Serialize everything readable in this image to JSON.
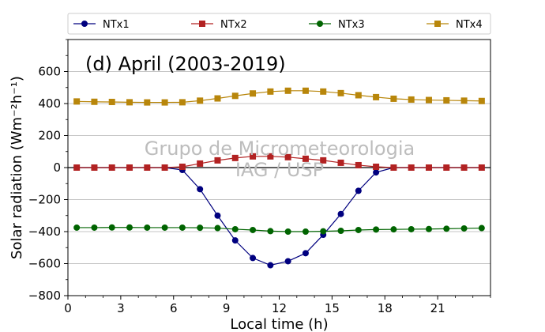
{
  "chart_data": {
    "type": "line",
    "title": "(d) April (2003-2019)",
    "watermark": [
      "Grupo de Micrometeorologia",
      "IAG / USP"
    ],
    "xlabel": "Local time (h)",
    "ylabel": "Solar radiation (Wm⁻²h⁻¹)",
    "xlim": [
      0,
      24
    ],
    "ylim": [
      -800,
      800
    ],
    "xticks": [
      0,
      3,
      6,
      9,
      12,
      15,
      18,
      21
    ],
    "yticks": [
      -800,
      -600,
      -400,
      -200,
      0,
      200,
      400,
      600
    ],
    "grid": "horizontal",
    "legend_position": "top",
    "zero_line": true,
    "x": [
      0.5,
      1.5,
      2.5,
      3.5,
      4.5,
      5.5,
      6.5,
      7.5,
      8.5,
      9.5,
      10.5,
      11.5,
      12.5,
      13.5,
      14.5,
      15.5,
      16.5,
      17.5,
      18.5,
      19.5,
      20.5,
      21.5,
      22.5,
      23.5
    ],
    "series": [
      {
        "name": "NTx1",
        "color": "#00007f",
        "marker": "circle",
        "values": [
          0,
          0,
          0,
          0,
          0,
          0,
          -15,
          -135,
          -300,
          -455,
          -565,
          -610,
          -585,
          -535,
          -420,
          -290,
          -145,
          -30,
          0,
          0,
          0,
          0,
          0,
          0
        ]
      },
      {
        "name": "NTx2",
        "color": "#b22222",
        "marker": "square",
        "values": [
          0,
          0,
          0,
          0,
          0,
          0,
          5,
          25,
          45,
          60,
          70,
          70,
          65,
          55,
          45,
          30,
          15,
          5,
          0,
          0,
          0,
          0,
          0,
          0
        ]
      },
      {
        "name": "NTx3",
        "color": "#006400",
        "marker": "circle",
        "values": [
          -375,
          -375,
          -374,
          -374,
          -375,
          -375,
          -375,
          -376,
          -378,
          -385,
          -390,
          -397,
          -400,
          -400,
          -398,
          -395,
          -390,
          -387,
          -386,
          -385,
          -384,
          -382,
          -380,
          -378
        ]
      },
      {
        "name": "NTx4",
        "color": "#b8860b",
        "marker": "square",
        "values": [
          413,
          411,
          410,
          408,
          407,
          407,
          408,
          418,
          432,
          448,
          463,
          475,
          480,
          480,
          475,
          465,
          452,
          440,
          430,
          425,
          422,
          420,
          418,
          416
        ]
      }
    ]
  }
}
